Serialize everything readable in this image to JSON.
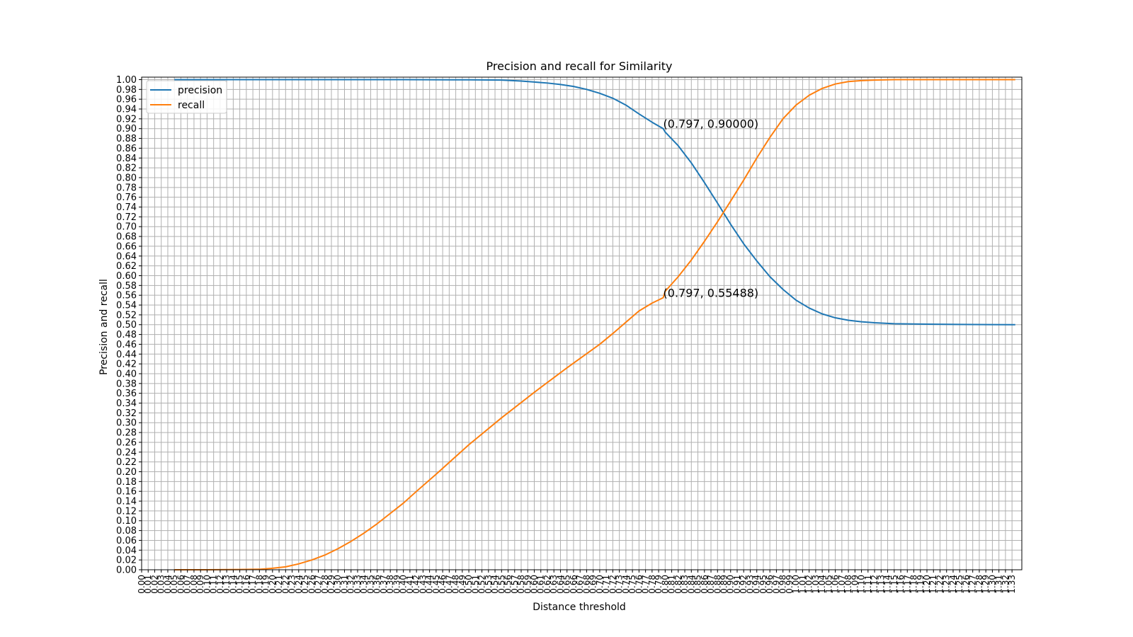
{
  "chart_data": {
    "type": "line",
    "title": "Precision and recall for Similarity",
    "xlabel": "Distance threshold",
    "ylabel": "Precision and recall",
    "xlim": [
      0.0,
      1.345
    ],
    "ylim": [
      0.0,
      1.005
    ],
    "grid": true,
    "legend_position": "top-left",
    "x_ticks": [
      "0.00",
      "0.01",
      "0.02",
      "0.03",
      "0.04",
      "0.05",
      "0.06",
      "0.07",
      "0.08",
      "0.09",
      "0.10",
      "0.11",
      "0.12",
      "0.13",
      "0.14",
      "0.15",
      "0.16",
      "0.17",
      "0.18",
      "0.19",
      "0.20",
      "0.21",
      "0.22",
      "0.23",
      "0.24",
      "0.25",
      "0.26",
      "0.27",
      "0.28",
      "0.29",
      "0.30",
      "0.31",
      "0.32",
      "0.33",
      "0.34",
      "0.35",
      "0.36",
      "0.37",
      "0.38",
      "0.39",
      "0.40",
      "0.41",
      "0.42",
      "0.43",
      "0.44",
      "0.45",
      "0.46",
      "0.47",
      "0.48",
      "0.49",
      "0.50",
      "0.51",
      "0.52",
      "0.53",
      "0.54",
      "0.55",
      "0.56",
      "0.57",
      "0.58",
      "0.59",
      "0.60",
      "0.61",
      "0.62",
      "0.63",
      "0.64",
      "0.65",
      "0.66",
      "0.67",
      "0.68",
      "0.69",
      "0.70",
      "0.71",
      "0.72",
      "0.73",
      "0.74",
      "0.75",
      "0.76",
      "0.77",
      "0.78",
      "0.79",
      "0.80",
      "0.81",
      "0.82",
      "0.83",
      "0.84",
      "0.85",
      "0.86",
      "0.87",
      "0.88",
      "0.89",
      "0.90",
      "0.91",
      "0.92",
      "0.93",
      "0.94",
      "0.95",
      "0.96",
      "0.97",
      "0.98",
      "0.99",
      "1.00",
      "1.01",
      "1.02",
      "1.03",
      "1.04",
      "1.05",
      "1.06",
      "1.07",
      "1.08",
      "1.09",
      "1.10",
      "1.11",
      "1.12",
      "1.13",
      "1.14",
      "1.15",
      "1.16",
      "1.17",
      "1.18",
      "1.19",
      "1.20",
      "1.21",
      "1.22",
      "1.23",
      "1.24",
      "1.25",
      "1.26",
      "1.27",
      "1.28",
      "1.29",
      "1.30",
      "1.31",
      "1.32",
      "1.33"
    ],
    "y_ticks": [
      "0.00",
      "0.02",
      "0.04",
      "0.06",
      "0.08",
      "0.10",
      "0.12",
      "0.14",
      "0.16",
      "0.18",
      "0.20",
      "0.22",
      "0.24",
      "0.26",
      "0.28",
      "0.30",
      "0.32",
      "0.34",
      "0.36",
      "0.38",
      "0.40",
      "0.42",
      "0.44",
      "0.46",
      "0.48",
      "0.50",
      "0.52",
      "0.54",
      "0.56",
      "0.58",
      "0.60",
      "0.62",
      "0.64",
      "0.66",
      "0.68",
      "0.70",
      "0.72",
      "0.74",
      "0.76",
      "0.78",
      "0.80",
      "0.82",
      "0.84",
      "0.86",
      "0.88",
      "0.90",
      "0.92",
      "0.94",
      "0.96",
      "0.98",
      "1.00"
    ],
    "series": [
      {
        "name": "precision",
        "color": "#1f77b4",
        "x": [
          0.05,
          0.1,
          0.2,
          0.3,
          0.4,
          0.5,
          0.55,
          0.58,
          0.6,
          0.62,
          0.64,
          0.66,
          0.68,
          0.7,
          0.72,
          0.74,
          0.76,
          0.78,
          0.797,
          0.8,
          0.82,
          0.84,
          0.86,
          0.88,
          0.9,
          0.92,
          0.94,
          0.96,
          0.98,
          1.0,
          1.02,
          1.04,
          1.06,
          1.08,
          1.1,
          1.12,
          1.15,
          1.2,
          1.25,
          1.3,
          1.335
        ],
        "y": [
          1.0,
          1.0,
          1.0,
          1.0,
          1.0,
          0.9995,
          0.999,
          0.997,
          0.995,
          0.993,
          0.99,
          0.986,
          0.98,
          0.972,
          0.962,
          0.948,
          0.93,
          0.913,
          0.9,
          0.893,
          0.865,
          0.83,
          0.79,
          0.748,
          0.705,
          0.665,
          0.63,
          0.598,
          0.572,
          0.55,
          0.534,
          0.522,
          0.514,
          0.509,
          0.506,
          0.504,
          0.502,
          0.501,
          0.5005,
          0.5002,
          0.5
        ]
      },
      {
        "name": "recall",
        "color": "#ff7f0e",
        "x": [
          0.05,
          0.1,
          0.15,
          0.18,
          0.2,
          0.22,
          0.24,
          0.26,
          0.28,
          0.3,
          0.32,
          0.34,
          0.36,
          0.38,
          0.4,
          0.42,
          0.45,
          0.5,
          0.55,
          0.6,
          0.65,
          0.7,
          0.72,
          0.74,
          0.76,
          0.78,
          0.797,
          0.8,
          0.82,
          0.84,
          0.86,
          0.88,
          0.9,
          0.92,
          0.94,
          0.96,
          0.98,
          1.0,
          1.02,
          1.04,
          1.06,
          1.08,
          1.1,
          1.12,
          1.15,
          1.18,
          1.2,
          1.25,
          1.3,
          1.335
        ],
        "y": [
          0.0,
          0.0,
          0.0005,
          0.001,
          0.003,
          0.006,
          0.012,
          0.02,
          0.03,
          0.043,
          0.058,
          0.075,
          0.094,
          0.115,
          0.136,
          0.16,
          0.195,
          0.255,
          0.31,
          0.362,
          0.412,
          0.46,
          0.482,
          0.505,
          0.528,
          0.544,
          0.555,
          0.568,
          0.598,
          0.632,
          0.67,
          0.71,
          0.752,
          0.795,
          0.84,
          0.882,
          0.92,
          0.948,
          0.968,
          0.982,
          0.991,
          0.996,
          0.998,
          0.999,
          1.0,
          1.0,
          1.0,
          1.0,
          1.0,
          1.0
        ]
      }
    ],
    "annotations": [
      {
        "text": "(0.797, 0.90000)",
        "x": 0.797,
        "y": 0.9
      },
      {
        "text": "(0.797, 0.55488)",
        "x": 0.797,
        "y": 0.55488
      }
    ]
  }
}
